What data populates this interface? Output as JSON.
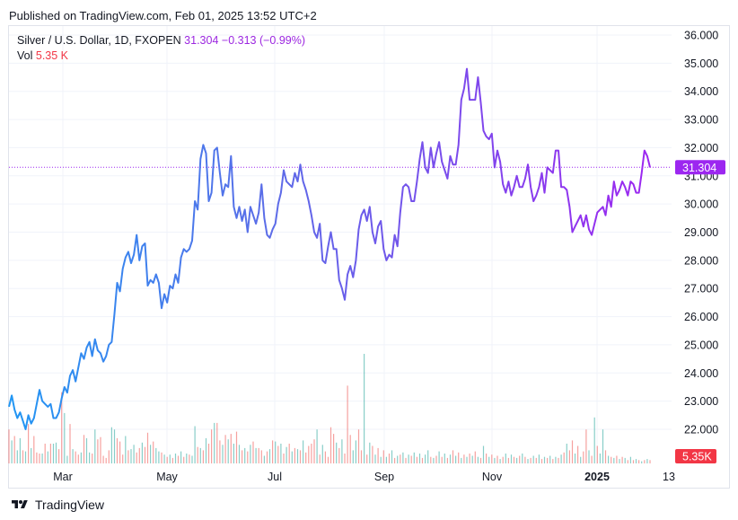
{
  "header": {
    "published": "Published on TradingView.com, Feb 01, 2025 13:52 UTC+2"
  },
  "legend": {
    "symbol": "Silver / U.S. Dollar, 1D, FXOPEN",
    "price": "31.304",
    "change": "−0.313 (−0.99%)",
    "vol_label": "Vol",
    "vol_value": "5.35 K"
  },
  "brand": {
    "name": "TradingView"
  },
  "colors": {
    "line_start": "#2196f3",
    "line_end": "#9c27f0",
    "vol_up": "#26a69a",
    "vol_down": "#ef5350",
    "price_tag": "#9c27f0",
    "vol_tag": "#f23645"
  },
  "chart_data": {
    "type": "line",
    "title": "Silver / U.S. Dollar, 1D, FXOPEN",
    "ylim": [
      21.1,
      36.6
    ],
    "y_ticks": [
      "36.000",
      "35.000",
      "34.000",
      "33.000",
      "32.000",
      "31.000",
      "30.000",
      "29.000",
      "28.000",
      "27.000",
      "26.000",
      "25.000",
      "24.000",
      "23.000",
      "22.000"
    ],
    "x_ticks": [
      "Mar",
      "May",
      "Jul",
      "Sep",
      "Nov",
      "2025",
      "13"
    ],
    "last_price_label": "31.304",
    "last_volume_label": "5.35K",
    "series": [
      {
        "values": [
          22.8,
          23.2,
          22.7,
          22.4,
          22.6,
          22.3,
          22.0,
          22.5,
          22.2,
          22.4,
          22.9,
          23.4,
          23.0,
          22.9,
          22.8,
          22.9,
          22.4,
          22.4,
          22.6,
          23.1,
          23.5,
          23.3,
          23.9,
          24.1,
          23.7,
          24.2,
          24.7,
          24.5,
          24.9,
          25.1,
          24.6,
          25.2,
          24.8,
          24.7,
          24.4,
          24.6,
          25.0,
          25.1,
          26.1,
          27.2,
          26.9,
          27.7,
          28.1,
          28.3,
          27.9,
          28.2,
          28.9,
          28.0,
          28.5,
          28.6,
          27.1,
          27.3,
          27.2,
          27.5,
          27.2,
          26.3,
          26.8,
          26.5,
          27.1,
          27.0,
          27.5,
          27.2,
          28.1,
          28.4,
          28.3,
          28.4,
          28.7,
          30.1,
          29.8,
          31.6,
          32.1,
          31.8,
          30.1,
          30.4,
          31.9,
          32.0,
          31.1,
          30.3,
          30.7,
          30.6,
          31.7,
          29.9,
          29.5,
          29.9,
          29.4,
          29.8,
          29.0,
          29.9,
          29.6,
          29.3,
          29.7,
          30.7,
          29.5,
          28.9,
          28.8,
          29.1,
          29.3,
          30.0,
          30.4,
          31.2,
          30.8,
          30.7,
          30.6,
          31.1,
          30.8,
          31.4,
          30.8,
          30.5,
          30.1,
          29.6,
          29.0,
          28.8,
          29.3,
          28.0,
          27.9,
          28.5,
          29.0,
          28.4,
          28.4,
          27.3,
          27.0,
          26.6,
          27.5,
          27.8,
          27.4,
          28.0,
          29.1,
          29.6,
          29.8,
          29.4,
          29.9,
          29.0,
          28.6,
          29.2,
          29.4,
          28.4,
          28.0,
          28.2,
          28.1,
          28.9,
          28.5,
          29.7,
          30.6,
          30.7,
          30.6,
          30.1,
          30.1,
          30.8,
          31.6,
          32.2,
          31.3,
          31.1,
          32.0,
          31.3,
          31.8,
          32.2,
          31.5,
          31.2,
          30.9,
          31.7,
          31.4,
          31.4,
          32.1,
          33.7,
          34.1,
          34.8,
          33.7,
          33.7,
          33.7,
          34.5,
          33.6,
          32.6,
          32.4,
          32.3,
          32.5,
          31.3,
          31.9,
          31.5,
          30.7,
          30.4,
          30.8,
          30.3,
          30.6,
          31.0,
          30.6,
          30.6,
          30.9,
          31.4,
          30.6,
          30.1,
          30.3,
          30.6,
          31.1,
          30.4,
          31.3,
          31.2,
          31.1,
          31.9,
          31.9,
          30.6,
          30.6,
          30.5,
          29.9,
          29.0,
          29.2,
          29.4,
          29.6,
          29.2,
          29.6,
          29.1,
          28.9,
          29.3,
          29.7,
          29.8,
          29.9,
          29.6,
          30.3,
          29.9,
          30.8,
          30.3,
          30.5,
          30.8,
          30.6,
          30.3,
          30.8,
          30.7,
          30.4,
          30.4,
          31.1,
          31.9,
          31.7,
          31.3
        ]
      }
    ],
    "volume": [
      {
        "v": 0.31,
        "up": false
      },
      {
        "v": 0.21,
        "up": true
      },
      {
        "v": 0.25,
        "up": false
      },
      {
        "v": 0.12,
        "up": true
      },
      {
        "v": 0.23,
        "up": true
      },
      {
        "v": 0.12,
        "up": false
      },
      {
        "v": 0.11,
        "up": true
      },
      {
        "v": 0.36,
        "up": false
      },
      {
        "v": 0.14,
        "up": true
      },
      {
        "v": 0.25,
        "up": false
      },
      {
        "v": 0.1,
        "up": false
      },
      {
        "v": 0.09,
        "up": false
      },
      {
        "v": 0.09,
        "up": true
      },
      {
        "v": 0.18,
        "up": false
      },
      {
        "v": 0.11,
        "up": true
      },
      {
        "v": 0.18,
        "up": false
      },
      {
        "v": 0.18,
        "up": true
      },
      {
        "v": 0.19,
        "up": true
      },
      {
        "v": 0.13,
        "up": false
      },
      {
        "v": 0.65,
        "up": false
      },
      {
        "v": 0.46,
        "up": true
      },
      {
        "v": 0.07,
        "up": true
      },
      {
        "v": 0.36,
        "up": false
      },
      {
        "v": 0.13,
        "up": true
      },
      {
        "v": 0.11,
        "up": false
      },
      {
        "v": 0.08,
        "up": false
      },
      {
        "v": 0.1,
        "up": true
      },
      {
        "v": 0.26,
        "up": false
      },
      {
        "v": 0.23,
        "up": true
      },
      {
        "v": 0.1,
        "up": true
      },
      {
        "v": 0.09,
        "up": false
      },
      {
        "v": 0.31,
        "up": true
      },
      {
        "v": 0.22,
        "up": false
      },
      {
        "v": 0.24,
        "up": false
      },
      {
        "v": 0.07,
        "up": false
      },
      {
        "v": 0.05,
        "up": false
      },
      {
        "v": 0.12,
        "up": false
      },
      {
        "v": 0.33,
        "up": true
      },
      {
        "v": 0.31,
        "up": true
      },
      {
        "v": 0.23,
        "up": false
      },
      {
        "v": 0.2,
        "up": false
      },
      {
        "v": 0.08,
        "up": false
      },
      {
        "v": 0.25,
        "up": true
      },
      {
        "v": 0.12,
        "up": false
      },
      {
        "v": 0.13,
        "up": true
      },
      {
        "v": 0.17,
        "up": true
      },
      {
        "v": 0.1,
        "up": false
      },
      {
        "v": 0.14,
        "up": false
      },
      {
        "v": 0.19,
        "up": true
      },
      {
        "v": 0.15,
        "up": false
      },
      {
        "v": 0.28,
        "up": false
      },
      {
        "v": 0.17,
        "up": true
      },
      {
        "v": 0.2,
        "up": false
      },
      {
        "v": 0.14,
        "up": true
      },
      {
        "v": 0.11,
        "up": true
      },
      {
        "v": 0.1,
        "up": false
      },
      {
        "v": 0.08,
        "up": true
      },
      {
        "v": 0.06,
        "up": false
      },
      {
        "v": 0.08,
        "up": true
      },
      {
        "v": 0.05,
        "up": false
      },
      {
        "v": 0.09,
        "up": true
      },
      {
        "v": 0.07,
        "up": false
      },
      {
        "v": 0.11,
        "up": true
      },
      {
        "v": 0.06,
        "up": false
      },
      {
        "v": 0.09,
        "up": true
      },
      {
        "v": 0.08,
        "up": false
      },
      {
        "v": 0.07,
        "up": true
      },
      {
        "v": 0.34,
        "up": true
      },
      {
        "v": 0.15,
        "up": false
      },
      {
        "v": 0.14,
        "up": true
      },
      {
        "v": 0.12,
        "up": false
      },
      {
        "v": 0.23,
        "up": true
      },
      {
        "v": 0.18,
        "up": false
      },
      {
        "v": 0.31,
        "up": false
      },
      {
        "v": 0.37,
        "up": true
      },
      {
        "v": 0.37,
        "up": false
      },
      {
        "v": 0.21,
        "up": false
      },
      {
        "v": 0.17,
        "up": true
      },
      {
        "v": 0.26,
        "up": false
      },
      {
        "v": 0.22,
        "up": true
      },
      {
        "v": 0.27,
        "up": false
      },
      {
        "v": 0.18,
        "up": true
      },
      {
        "v": 0.29,
        "up": false
      },
      {
        "v": 0.17,
        "up": true
      },
      {
        "v": 0.12,
        "up": false
      },
      {
        "v": 0.14,
        "up": true
      },
      {
        "v": 0.11,
        "up": false
      },
      {
        "v": 0.17,
        "up": true
      },
      {
        "v": 0.2,
        "up": false
      },
      {
        "v": 0.14,
        "up": true
      },
      {
        "v": 0.14,
        "up": false
      },
      {
        "v": 0.12,
        "up": false
      },
      {
        "v": 0.07,
        "up": true
      },
      {
        "v": 0.11,
        "up": false
      },
      {
        "v": 0.13,
        "up": true
      },
      {
        "v": 0.21,
        "up": false
      },
      {
        "v": 0.2,
        "up": true
      },
      {
        "v": 0.16,
        "up": false
      },
      {
        "v": 0.18,
        "up": true
      },
      {
        "v": 0.09,
        "up": false
      },
      {
        "v": 0.15,
        "up": true
      },
      {
        "v": 0.18,
        "up": false
      },
      {
        "v": 0.11,
        "up": true
      },
      {
        "v": 0.14,
        "up": false
      },
      {
        "v": 0.13,
        "up": true
      },
      {
        "v": 0.12,
        "up": false
      },
      {
        "v": 0.21,
        "up": true
      },
      {
        "v": 0.1,
        "up": false
      },
      {
        "v": 0.16,
        "up": false
      },
      {
        "v": 0.18,
        "up": false
      },
      {
        "v": 0.22,
        "up": false
      },
      {
        "v": 0.31,
        "up": true
      },
      {
        "v": 0.08,
        "up": false
      },
      {
        "v": 0.17,
        "up": true
      },
      {
        "v": 0.11,
        "up": false
      },
      {
        "v": 0.06,
        "up": false
      },
      {
        "v": 0.33,
        "up": false
      },
      {
        "v": 0.27,
        "up": false
      },
      {
        "v": 0.19,
        "up": true
      },
      {
        "v": 0.14,
        "up": false
      },
      {
        "v": 0.22,
        "up": true
      },
      {
        "v": 0.09,
        "up": false
      },
      {
        "v": 0.71,
        "up": false
      },
      {
        "v": 0.26,
        "up": false
      },
      {
        "v": 0.12,
        "up": true
      },
      {
        "v": 0.21,
        "up": true
      },
      {
        "v": 0.31,
        "up": false
      },
      {
        "v": 0.12,
        "up": false
      },
      {
        "v": 1.0,
        "up": true
      },
      {
        "v": 0.08,
        "up": false
      },
      {
        "v": 0.19,
        "up": true
      },
      {
        "v": 0.16,
        "up": false
      },
      {
        "v": 0.08,
        "up": true
      },
      {
        "v": 0.14,
        "up": false
      },
      {
        "v": 0.06,
        "up": true
      },
      {
        "v": 0.12,
        "up": false
      },
      {
        "v": 0.06,
        "up": true
      },
      {
        "v": 0.09,
        "up": false
      },
      {
        "v": 0.12,
        "up": true
      },
      {
        "v": 0.05,
        "up": false
      },
      {
        "v": 0.07,
        "up": true
      },
      {
        "v": 0.08,
        "up": false
      },
      {
        "v": 0.1,
        "up": true
      },
      {
        "v": 0.05,
        "up": false
      },
      {
        "v": 0.08,
        "up": true
      },
      {
        "v": 0.07,
        "up": false
      },
      {
        "v": 0.1,
        "up": true
      },
      {
        "v": 0.06,
        "up": false
      },
      {
        "v": 0.09,
        "up": true
      },
      {
        "v": 0.05,
        "up": false
      },
      {
        "v": 0.08,
        "up": true
      },
      {
        "v": 0.12,
        "up": true
      },
      {
        "v": 0.06,
        "up": false
      },
      {
        "v": 0.05,
        "up": true
      },
      {
        "v": 0.07,
        "up": false
      },
      {
        "v": 0.11,
        "up": true
      },
      {
        "v": 0.06,
        "up": false
      },
      {
        "v": 0.09,
        "up": true
      },
      {
        "v": 0.05,
        "up": false
      },
      {
        "v": 0.08,
        "up": true
      },
      {
        "v": 0.12,
        "up": false
      },
      {
        "v": 0.07,
        "up": true
      },
      {
        "v": 0.1,
        "up": false
      },
      {
        "v": 0.05,
        "up": true
      },
      {
        "v": 0.08,
        "up": false
      },
      {
        "v": 0.06,
        "up": true
      },
      {
        "v": 0.09,
        "up": false
      },
      {
        "v": 0.07,
        "up": true
      },
      {
        "v": 0.11,
        "up": false
      },
      {
        "v": 0.06,
        "up": true
      },
      {
        "v": 0.05,
        "up": false
      },
      {
        "v": 0.16,
        "up": true
      },
      {
        "v": 0.09,
        "up": false
      },
      {
        "v": 0.06,
        "up": true
      },
      {
        "v": 0.08,
        "up": false
      },
      {
        "v": 0.05,
        "up": true
      },
      {
        "v": 0.07,
        "up": false
      },
      {
        "v": 0.04,
        "up": true
      },
      {
        "v": 0.06,
        "up": false
      },
      {
        "v": 0.09,
        "up": true
      },
      {
        "v": 0.05,
        "up": false
      },
      {
        "v": 0.08,
        "up": true
      },
      {
        "v": 0.06,
        "up": false
      },
      {
        "v": 0.05,
        "up": true
      },
      {
        "v": 0.07,
        "up": false
      },
      {
        "v": 0.09,
        "up": true
      },
      {
        "v": 0.06,
        "up": false
      },
      {
        "v": 0.04,
        "up": true
      },
      {
        "v": 0.05,
        "up": false
      },
      {
        "v": 0.07,
        "up": true
      },
      {
        "v": 0.05,
        "up": false
      },
      {
        "v": 0.08,
        "up": true
      },
      {
        "v": 0.04,
        "up": false
      },
      {
        "v": 0.06,
        "up": true
      },
      {
        "v": 0.05,
        "up": false
      },
      {
        "v": 0.07,
        "up": true
      },
      {
        "v": 0.04,
        "up": false
      },
      {
        "v": 0.06,
        "up": true
      },
      {
        "v": 0.05,
        "up": false
      },
      {
        "v": 0.08,
        "up": true
      },
      {
        "v": 0.1,
        "up": false
      },
      {
        "v": 0.18,
        "up": true
      },
      {
        "v": 0.12,
        "up": false
      },
      {
        "v": 0.21,
        "up": false
      },
      {
        "v": 0.09,
        "up": true
      },
      {
        "v": 0.16,
        "up": false
      },
      {
        "v": 0.06,
        "up": true
      },
      {
        "v": 0.11,
        "up": false
      },
      {
        "v": 0.31,
        "up": false
      },
      {
        "v": 0.12,
        "up": true
      },
      {
        "v": 0.07,
        "up": false
      },
      {
        "v": 0.42,
        "up": true
      },
      {
        "v": 0.16,
        "up": false
      },
      {
        "v": 0.09,
        "up": true
      },
      {
        "v": 0.31,
        "up": true
      },
      {
        "v": 0.12,
        "up": false
      },
      {
        "v": 0.07,
        "up": true
      },
      {
        "v": 0.06,
        "up": false
      },
      {
        "v": 0.05,
        "up": true
      },
      {
        "v": 0.07,
        "up": false
      },
      {
        "v": 0.04,
        "up": true
      },
      {
        "v": 0.06,
        "up": false
      },
      {
        "v": 0.05,
        "up": true
      },
      {
        "v": 0.03,
        "up": false
      },
      {
        "v": 0.06,
        "up": true
      },
      {
        "v": 0.03,
        "up": false
      },
      {
        "v": 0.04,
        "up": true
      },
      {
        "v": 0.03,
        "up": false
      },
      {
        "v": 0.02,
        "up": true
      },
      {
        "v": 0.03,
        "up": false
      },
      {
        "v": 0.04,
        "up": true
      },
      {
        "v": 0.03,
        "up": false
      }
    ]
  }
}
